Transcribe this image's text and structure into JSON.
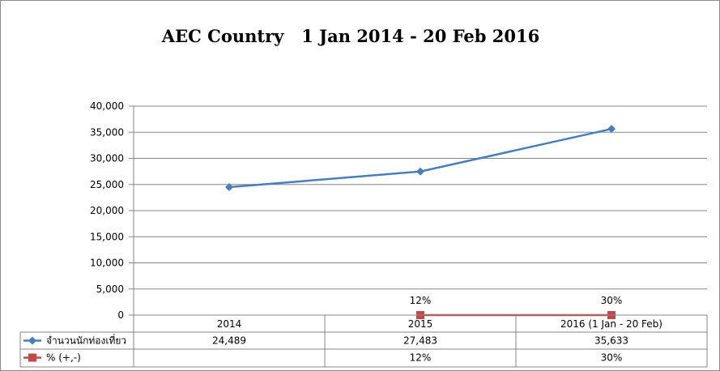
{
  "chart_data": {
    "type": "line",
    "title": "AEC Country   1 Jan 2014 - 20 Feb 2016",
    "categories": [
      "2014",
      "2015",
      "2016 (1 Jan - 20 Feb)"
    ],
    "series": [
      {
        "name": "จำนวนนักท่องเที่ยว",
        "values": [
          24489,
          27483,
          35633
        ],
        "display": [
          "24,489",
          "27,483",
          "35,633"
        ],
        "color": "#4a7ebb",
        "marker": "diamond"
      },
      {
        "name": "% (+,-)",
        "values": [
          null,
          0.12,
          0.3
        ],
        "display": [
          "",
          "12%",
          "30%"
        ],
        "data_labels": [
          "",
          "12%",
          "30%"
        ],
        "color": "#be4b48",
        "marker": "square"
      }
    ],
    "ylim": [
      0,
      40000
    ],
    "yticks": [
      "0",
      "5,000",
      "10,000",
      "15,000",
      "20,000",
      "25,000",
      "30,000",
      "35,000",
      "40,000"
    ],
    "grid": true,
    "legend": "data-table"
  }
}
